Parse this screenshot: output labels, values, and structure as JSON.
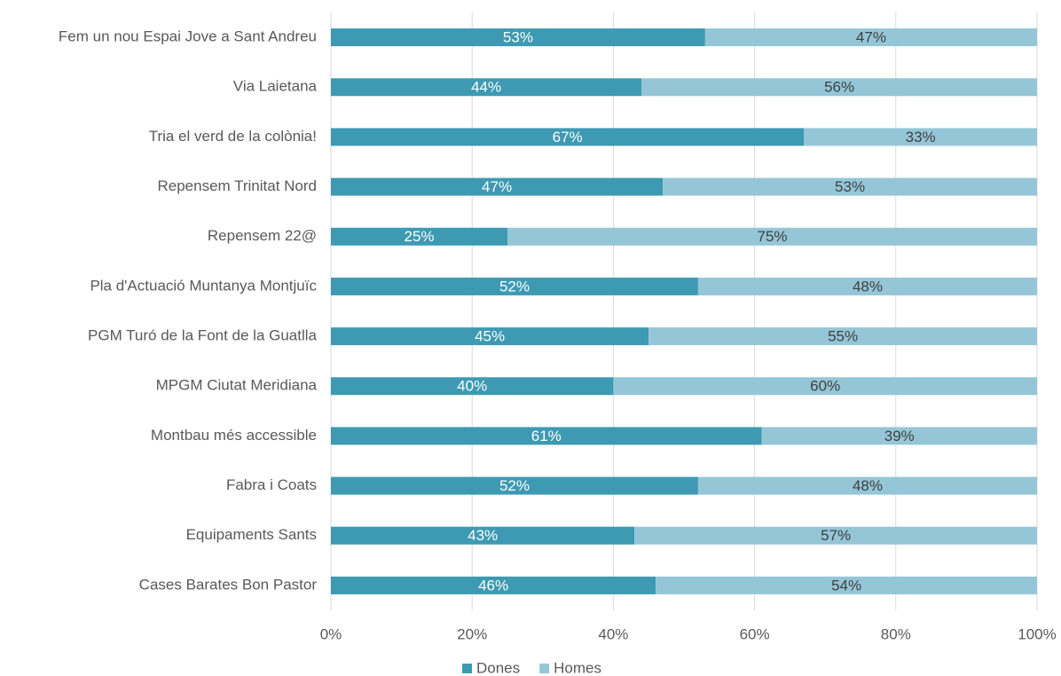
{
  "chart_data": {
    "type": "stacked_bar_horizontal",
    "categories": [
      "Fem un nou Espai Jove a Sant Andreu",
      "Via Laietana",
      "Tria el verd de la colònia!",
      "Repensem Trinitat Nord",
      "Repensem 22@",
      "Pla d'Actuació Muntanya Montjuïc",
      "PGM Turó de la Font de la Guatlla",
      "MPGM Ciutat Meridiana",
      "Montbau més accessible",
      "Fabra i Coats",
      "Equipaments Sants",
      "Cases Barates Bon Pastor"
    ],
    "series": [
      {
        "name": "Dones",
        "color": "#3d9ab2",
        "values": [
          53,
          44,
          67,
          47,
          25,
          52,
          45,
          40,
          61,
          52,
          43,
          46
        ],
        "value_labels": [
          "53%",
          "44%",
          "67%",
          "47%",
          "25%",
          "52%",
          "45%",
          "40%",
          "61%",
          "52%",
          "43%",
          "46%"
        ]
      },
      {
        "name": "Homes",
        "color": "#94c6d7",
        "values": [
          47,
          56,
          33,
          53,
          75,
          48,
          55,
          60,
          39,
          48,
          57,
          54
        ],
        "value_labels": [
          "47%",
          "56%",
          "33%",
          "53%",
          "75%",
          "48%",
          "55%",
          "60%",
          "39%",
          "48%",
          "57%",
          "54%"
        ]
      }
    ],
    "xlim": [
      0,
      100
    ],
    "xticks": [
      {
        "value": 0,
        "label": "0%"
      },
      {
        "value": 20,
        "label": "20%"
      },
      {
        "value": 40,
        "label": "40%"
      },
      {
        "value": 60,
        "label": "60%"
      },
      {
        "value": 80,
        "label": "80%"
      },
      {
        "value": 100,
        "label": "100%"
      }
    ],
    "grid": true,
    "legend": "bottom"
  }
}
